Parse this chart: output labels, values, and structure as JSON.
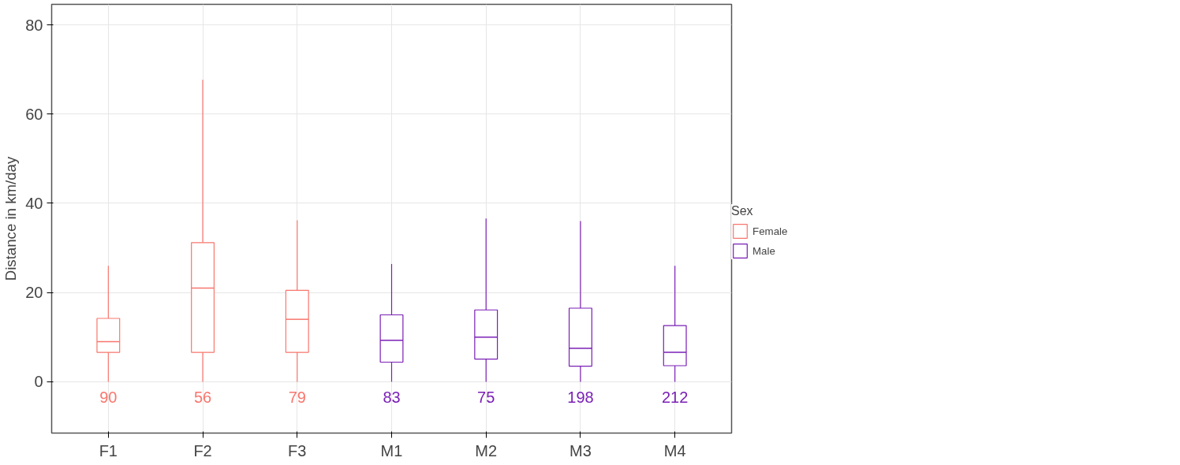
{
  "chart_data": {
    "type": "box",
    "ylabel": "Distance in km/day",
    "legend_title": "Sex",
    "legend": "right",
    "grid": true,
    "categories": [
      "F1",
      "F2",
      "F3",
      "M1",
      "M2",
      "M3",
      "M4"
    ],
    "ylim": [
      -11.5,
      84.6
    ],
    "yticks": [
      0,
      20,
      40,
      60,
      80
    ],
    "series": [
      {
        "name": "Female",
        "color": "#f8766d",
        "boxes": [
          {
            "low": 0,
            "q1": 6.6,
            "median": 9.0,
            "q3": 14.2,
            "high": 26
          },
          {
            "low": 0,
            "q1": 6.6,
            "median": 21.0,
            "q3": 31.2,
            "high": 67.7
          },
          {
            "low": 0,
            "q1": 6.6,
            "median": 14.0,
            "q3": 20.5,
            "high": 36.2
          },
          null,
          null,
          null,
          null
        ]
      },
      {
        "name": "Male",
        "color": "#7a1fb5",
        "boxes": [
          null,
          null,
          null,
          {
            "low": 0,
            "q1": 4.4,
            "median": 9.3,
            "q3": 15.0,
            "high": 26.4
          },
          {
            "low": 0,
            "q1": 5.1,
            "median": 10.0,
            "q3": 16.1,
            "high": 36.6
          },
          {
            "low": 0,
            "q1": 3.5,
            "median": 7.5,
            "q3": 16.5,
            "high": 36
          },
          {
            "low": 0,
            "q1": 3.6,
            "median": 6.6,
            "q3": 12.6,
            "high": 26
          }
        ]
      }
    ],
    "annotations": [
      "90",
      "56",
      "79",
      "83",
      "75",
      "198",
      "212"
    ]
  }
}
